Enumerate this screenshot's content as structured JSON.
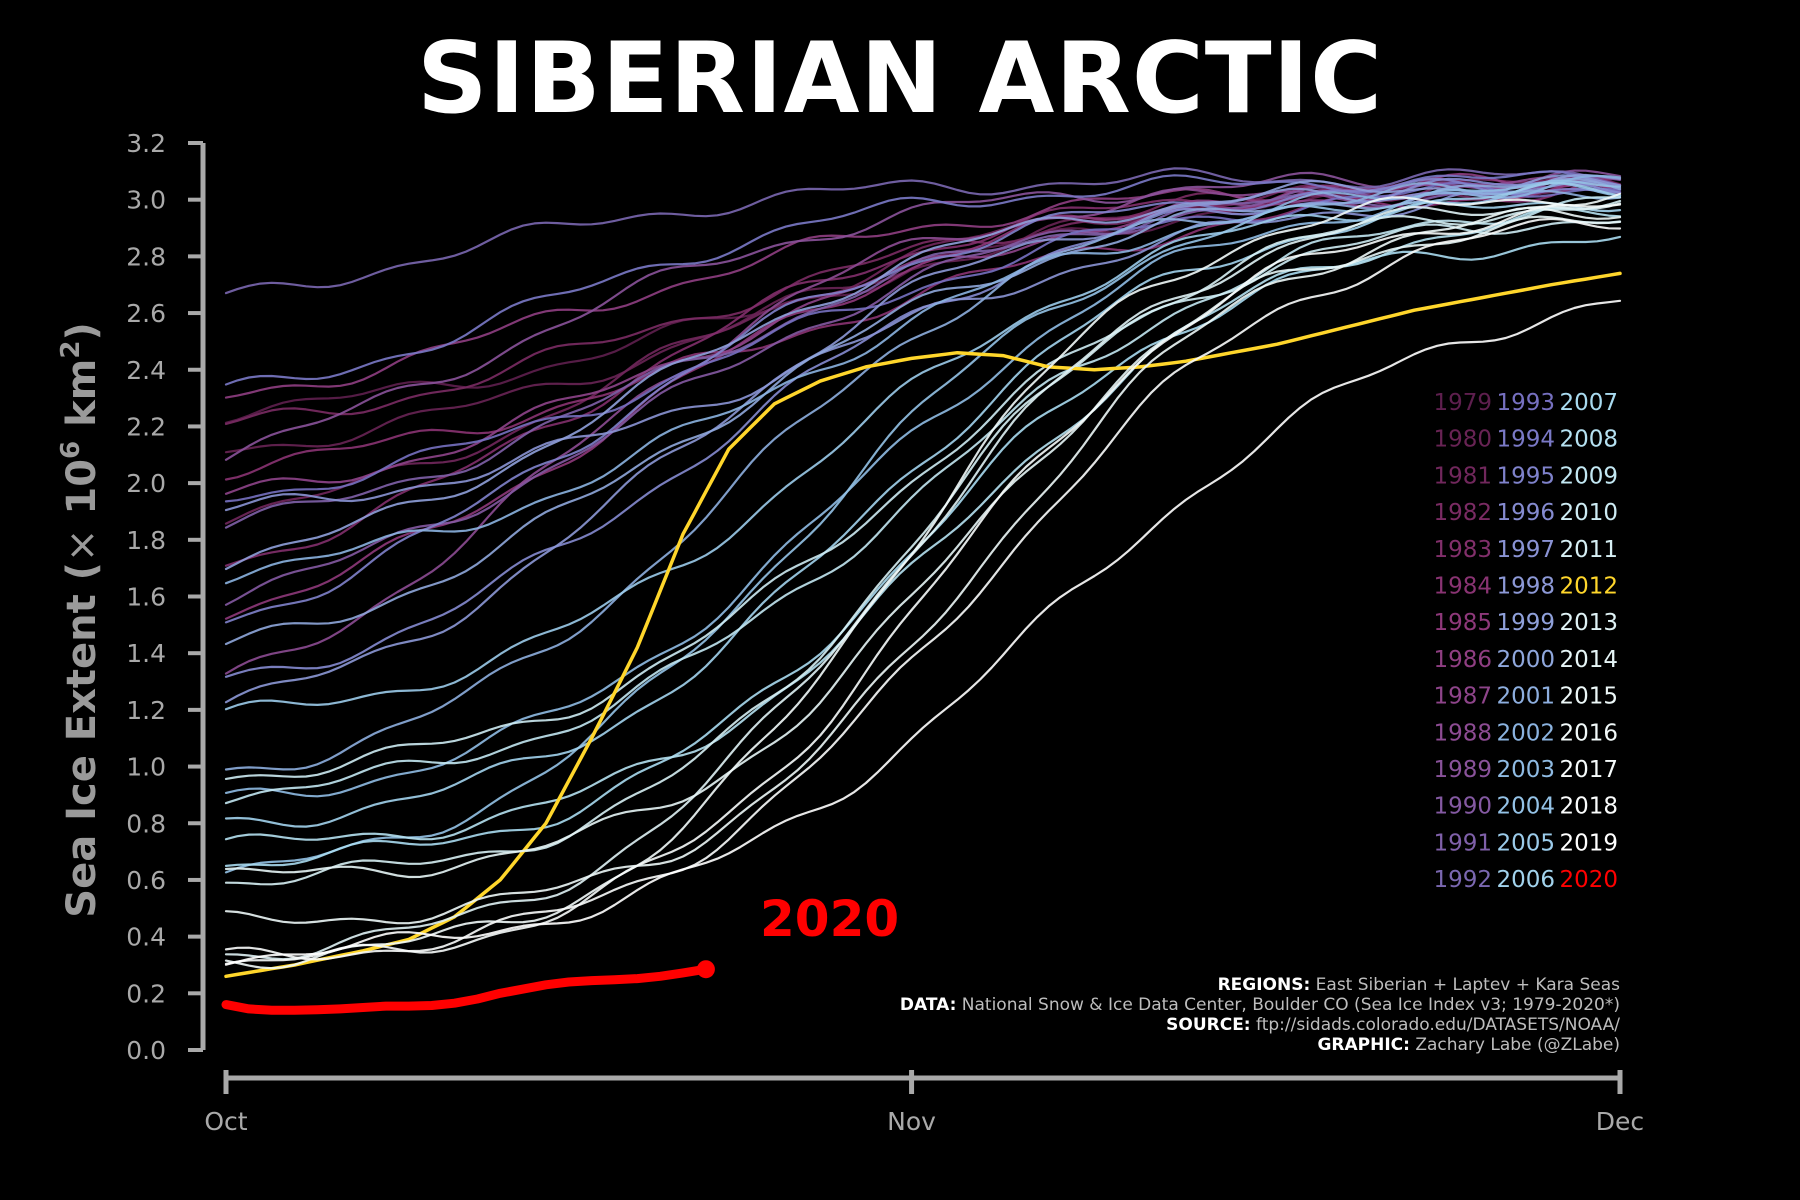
{
  "title": "SIBERIAN ARCTIC",
  "chart_data": {
    "type": "line",
    "title": "SIBERIAN ARCTIC",
    "ylabel": "Sea Ice Extent (×10⁶ km²)",
    "ylabel_parts": {
      "main": "Sea Ice Extent (",
      "times": "×",
      "base": "10",
      "exp": "6",
      "unit": " km",
      "unit_exp": "2",
      "close": ")"
    },
    "xlabel": "",
    "xlim": [
      0,
      61
    ],
    "ylim": [
      0,
      3.2
    ],
    "x_ticks": [
      {
        "x": 0,
        "label": "Oct"
      },
      {
        "x": 30,
        "label": "Nov"
      },
      {
        "x": 60,
        "label": "Dec"
      }
    ],
    "y_ticks": [
      0.0,
      0.2,
      0.4,
      0.6,
      0.8,
      1.0,
      1.2,
      1.4,
      1.6,
      1.8,
      2.0,
      2.2,
      2.4,
      2.6,
      2.8,
      3.0,
      3.2
    ],
    "y_tick_labels": [
      "0.0",
      "0.2",
      "0.4",
      "0.6",
      "0.8",
      "1.0",
      "1.2",
      "1.4",
      "1.6",
      "1.8",
      "2.0",
      "2.2",
      "2.4",
      "2.6",
      "2.8",
      "3.0",
      "3.2"
    ],
    "grid": false,
    "legend_position": "right",
    "series": [
      {
        "name": "1979",
        "color": "#5e1f4e",
        "start": 2.25,
        "mid": 24,
        "k": 0.1,
        "end": 3.05,
        "w": 0
      },
      {
        "name": "1980",
        "color": "#682354",
        "start": 2.12,
        "mid": 22,
        "k": 0.11,
        "end": 3.05,
        "w": 0
      },
      {
        "name": "1981",
        "color": "#71275c",
        "start": 1.88,
        "mid": 18,
        "k": 0.12,
        "end": 3.04,
        "w": 0
      },
      {
        "name": "1982",
        "color": "#7a2b63",
        "start": 2.2,
        "mid": 20,
        "k": 0.1,
        "end": 3.06,
        "w": 0
      },
      {
        "name": "1983",
        "color": "#822f6b",
        "start": 1.72,
        "mid": 16,
        "k": 0.12,
        "end": 3.05,
        "w": 0
      },
      {
        "name": "1984",
        "color": "#893372",
        "start": 2.05,
        "mid": 24,
        "k": 0.09,
        "end": 3.04,
        "w": 0
      },
      {
        "name": "1985",
        "color": "#8e387a",
        "start": 1.55,
        "mid": 17,
        "k": 0.12,
        "end": 3.05,
        "w": 0
      },
      {
        "name": "1986",
        "color": "#8f3e82",
        "start": 2.3,
        "mid": 15,
        "k": 0.1,
        "end": 3.06,
        "w": 0
      },
      {
        "name": "1987",
        "color": "#8e448a",
        "start": 1.95,
        "mid": 20,
        "k": 0.11,
        "end": 3.04,
        "w": 0
      },
      {
        "name": "1988",
        "color": "#8c4b92",
        "start": 1.3,
        "mid": 14,
        "k": 0.13,
        "end": 3.05,
        "w": 0
      },
      {
        "name": "1989",
        "color": "#89529a",
        "start": 2.1,
        "mid": 12,
        "k": 0.12,
        "end": 3.07,
        "w": 0
      },
      {
        "name": "1990",
        "color": "#8459a2",
        "start": 1.6,
        "mid": 18,
        "k": 0.11,
        "end": 3.05,
        "w": 0
      },
      {
        "name": "1991",
        "color": "#7f60a9",
        "start": 1.85,
        "mid": 19,
        "k": 0.11,
        "end": 3.04,
        "w": 0
      },
      {
        "name": "1992",
        "color": "#7a67b0",
        "start": 2.65,
        "mid": 8,
        "k": 0.12,
        "end": 3.08,
        "w": 0
      },
      {
        "name": "1993",
        "color": "#7670c0",
        "start": 1.95,
        "mid": 22,
        "k": 0.1,
        "end": 3.05,
        "w": 0
      },
      {
        "name": "1994",
        "color": "#7a79c6",
        "start": 2.32,
        "mid": 14,
        "k": 0.13,
        "end": 3.07,
        "w": 0
      },
      {
        "name": "1995",
        "color": "#7f82cb",
        "start": 1.52,
        "mid": 16,
        "k": 0.12,
        "end": 3.05,
        "w": 0
      },
      {
        "name": "1996",
        "color": "#858bd0",
        "start": 1.3,
        "mid": 21,
        "k": 0.12,
        "end": 3.06,
        "w": 0
      },
      {
        "name": "1997",
        "color": "#8a93d4",
        "start": 1.9,
        "mid": 26,
        "k": 0.1,
        "end": 3.04,
        "w": 0
      },
      {
        "name": "1998",
        "color": "#8c98d6",
        "start": 1.22,
        "mid": 19,
        "k": 0.13,
        "end": 3.05,
        "w": 0
      },
      {
        "name": "1999",
        "color": "#8fa0da",
        "start": 1.72,
        "mid": 18,
        "k": 0.12,
        "end": 3.06,
        "w": 0
      },
      {
        "name": "2000",
        "color": "#8fa7dc",
        "start": 1.42,
        "mid": 20,
        "k": 0.11,
        "end": 3.05,
        "w": 0
      },
      {
        "name": "2001",
        "color": "#8daede",
        "start": 0.98,
        "mid": 22,
        "k": 0.14,
        "end": 3.04,
        "w": 0
      },
      {
        "name": "2002",
        "color": "#8bb3e0",
        "start": 1.68,
        "mid": 24,
        "k": 0.11,
        "end": 3.06,
        "w": 0
      },
      {
        "name": "2003",
        "color": "#8fbbe3",
        "start": 0.88,
        "mid": 27,
        "k": 0.13,
        "end": 3.05,
        "w": 0
      },
      {
        "name": "2004",
        "color": "#94c2e6",
        "start": 0.62,
        "mid": 25,
        "k": 0.14,
        "end": 3.04,
        "w": 0
      },
      {
        "name": "2005",
        "color": "#9bcbea",
        "start": 1.18,
        "mid": 26,
        "k": 0.13,
        "end": 3.03,
        "w": 0
      },
      {
        "name": "2006",
        "color": "#a2d3ed",
        "start": 0.8,
        "mid": 28,
        "k": 0.14,
        "end": 3.0,
        "w": 0
      },
      {
        "name": "2007",
        "color": "#a8daef",
        "start": 0.66,
        "mid": 30,
        "k": 0.15,
        "end": 2.86,
        "w": 0
      },
      {
        "name": "2008",
        "color": "#b5e1f1",
        "start": 0.72,
        "mid": 32,
        "k": 0.14,
        "end": 2.95,
        "w": 0
      },
      {
        "name": "2009",
        "color": "#c2e7f2",
        "start": 0.9,
        "mid": 30,
        "k": 0.12,
        "end": 3.0,
        "w": 0
      },
      {
        "name": "2010",
        "color": "#cdebf3",
        "start": 0.97,
        "mid": 29,
        "k": 0.13,
        "end": 2.94,
        "w": 0
      },
      {
        "name": "2011",
        "color": "#d6eff4",
        "start": 0.6,
        "mid": 30,
        "k": 0.16,
        "end": 2.98,
        "w": 0
      },
      {
        "name": "2012",
        "color": "#ffd62b",
        "start": 0.26,
        "mid": 22,
        "k": 0.23,
        "end": 2.73,
        "w": 3.5,
        "custom": "y2012"
      },
      {
        "name": "2013",
        "color": "#dff2f5",
        "start": 0.34,
        "mid": 29,
        "k": 0.15,
        "end": 3.0,
        "w": 0
      },
      {
        "name": "2014",
        "color": "#e6f5f6",
        "start": 0.61,
        "mid": 32,
        "k": 0.16,
        "end": 2.92,
        "w": 0
      },
      {
        "name": "2015",
        "color": "#ecf7f7",
        "start": 0.45,
        "mid": 33,
        "k": 0.16,
        "end": 2.96,
        "w": 0
      },
      {
        "name": "2016",
        "color": "#f1f9f9",
        "start": 0.32,
        "mid": 29,
        "k": 0.17,
        "end": 3.02,
        "w": 0
      },
      {
        "name": "2017",
        "color": "#f6fbfb",
        "start": 0.3,
        "mid": 31,
        "k": 0.15,
        "end": 2.97,
        "w": 0
      },
      {
        "name": "2018",
        "color": "#fafcfc",
        "start": 0.32,
        "mid": 33,
        "k": 0.14,
        "end": 2.93,
        "w": 0
      },
      {
        "name": "2019",
        "color": "#ffffff",
        "start": 0.33,
        "mid": 36,
        "k": 0.12,
        "end": 2.64,
        "w": 0
      },
      {
        "name": "2020",
        "color": "#ff0000",
        "w": 9,
        "custom": "y2020",
        "x": [
          0,
          1,
          2,
          3,
          4,
          5,
          6,
          7,
          8,
          9,
          10,
          11,
          12,
          13,
          14,
          15,
          16,
          17,
          18,
          19,
          20,
          21
        ],
        "values": [
          0.16,
          0.145,
          0.14,
          0.14,
          0.142,
          0.145,
          0.15,
          0.155,
          0.155,
          0.157,
          0.165,
          0.18,
          0.2,
          0.215,
          0.23,
          0.24,
          0.245,
          0.248,
          0.252,
          0.26,
          0.272,
          0.285
        ]
      }
    ],
    "highlight_label": "2020",
    "highlight_color": "#ff0000"
  },
  "legend_columns": [
    [
      "1979",
      "1980",
      "1981",
      "1982",
      "1983",
      "1984",
      "1985",
      "1986",
      "1987",
      "1988",
      "1989",
      "1990",
      "1991",
      "1992"
    ],
    [
      "1993",
      "1994",
      "1995",
      "1996",
      "1997",
      "1998",
      "1999",
      "2000",
      "2001",
      "2002",
      "2003",
      "2004",
      "2005",
      "2006"
    ],
    [
      "2007",
      "2008",
      "2009",
      "2010",
      "2011",
      "2012",
      "2013",
      "2014",
      "2015",
      "2016",
      "2017",
      "2018",
      "2019",
      "2020"
    ]
  ],
  "credits": [
    {
      "key": "REGIONS:",
      "text": " East Siberian + Laptev + Kara Seas"
    },
    {
      "key": "DATA:",
      "text": " National Snow & Ice Data Center, Boulder CO (Sea Ice Index v3; 1979-2020*)"
    },
    {
      "key": "SOURCE:",
      "text": " ftp://sidads.colorado.edu/DATASETS/NOAA/"
    },
    {
      "key": "GRAPHIC:",
      "text": " Zachary Labe (@ZLabe)"
    }
  ]
}
